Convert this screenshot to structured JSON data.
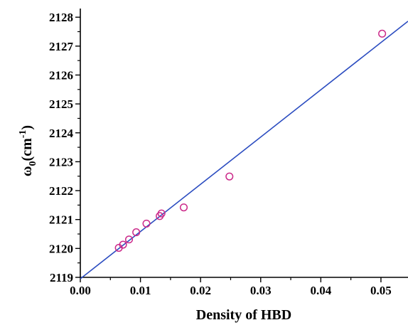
{
  "chart_data": {
    "type": "scatter",
    "xlabel": "Density of HBD",
    "ylabel": "ω0(cm-1)",
    "ylabel_parts": {
      "symbol": "ω",
      "sub": "0",
      "unit_open": "(cm",
      "sup": "-1",
      "unit_close": ")"
    },
    "xlim": [
      0.0,
      0.0545
    ],
    "ylim": [
      2119,
      2128.3
    ],
    "x_ticks": [
      0.0,
      0.01,
      0.02,
      0.03,
      0.04,
      0.05
    ],
    "x_tick_labels": [
      "0.00",
      "0.01",
      "0.02",
      "0.03",
      "0.04",
      "0.05"
    ],
    "y_ticks": [
      2119,
      2120,
      2121,
      2122,
      2123,
      2124,
      2125,
      2126,
      2127,
      2128
    ],
    "y_tick_labels": [
      "2119",
      "2120",
      "2121",
      "2122",
      "2123",
      "2124",
      "2125",
      "2126",
      "2127",
      "2128"
    ],
    "grid": false,
    "legend": "none",
    "series": [
      {
        "kind": "markers",
        "marker": "open-circle",
        "color": "#cc2a8a",
        "points": [
          [
            0.0064,
            2120.02
          ],
          [
            0.0071,
            2120.13
          ],
          [
            0.0081,
            2120.31
          ],
          [
            0.0093,
            2120.56
          ],
          [
            0.011,
            2120.86
          ],
          [
            0.0132,
            2121.12
          ],
          [
            0.0135,
            2121.21
          ],
          [
            0.0172,
            2121.42
          ],
          [
            0.0248,
            2122.49
          ],
          [
            0.0502,
            2127.43
          ]
        ]
      },
      {
        "kind": "fit-line",
        "color": "#2b4cc0",
        "points": [
          [
            0.0,
            2118.95
          ],
          [
            0.0545,
            2127.86
          ]
        ]
      }
    ]
  }
}
